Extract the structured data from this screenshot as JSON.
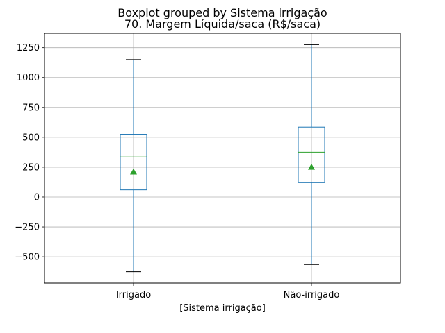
{
  "chart_data": {
    "type": "box",
    "suptitle": "Boxplot grouped by Sistema irrigação",
    "title": "70. Margem Líquida/saca (R$/saca)",
    "xlabel": "[Sistema irrigação]",
    "ylabel": "",
    "ylim": [
      -720,
      1370
    ],
    "yticks": [
      -500,
      -250,
      0,
      250,
      500,
      750,
      1000,
      1250
    ],
    "ytick_labels": [
      "−500",
      "−250",
      "0",
      "250",
      "500",
      "750",
      "1000",
      "1250"
    ],
    "grid": true,
    "showmeans": true,
    "categories": [
      "Irrigado",
      "Não-irrigado"
    ],
    "boxes": [
      {
        "category": "Irrigado",
        "whisker_low": -625,
        "q1": 60,
        "median": 335,
        "q3": 525,
        "whisker_high": 1150,
        "mean": 210
      },
      {
        "category": "Não-irrigado",
        "whisker_low": -565,
        "q1": 120,
        "median": 375,
        "q3": 585,
        "whisker_high": 1275,
        "mean": 250
      }
    ],
    "colors": {
      "box": "#1f77b4",
      "median": "#2ca02c",
      "mean_marker": "#2ca02c",
      "caps": "#000000",
      "grid": "#b0b0b0",
      "axes": "#000000"
    }
  }
}
